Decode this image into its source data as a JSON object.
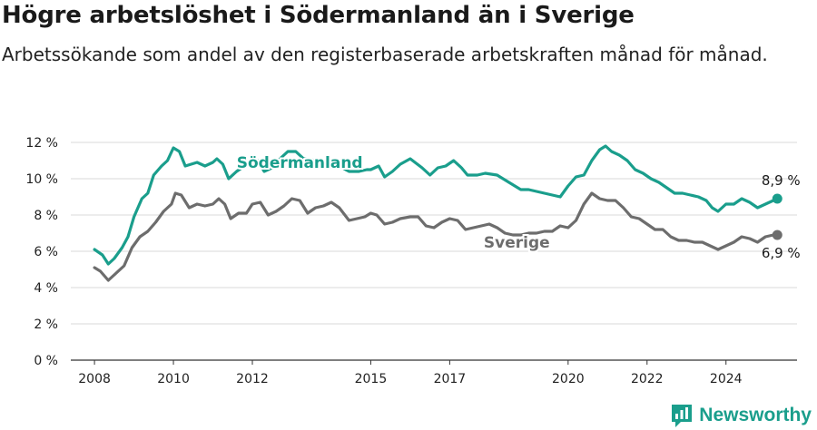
{
  "header": {
    "title": "Högre arbetslöshet i Södermanland än i Sverige",
    "subtitle": "Arbetssökande som andel av den registerbaserade arbetskraften månad för månad."
  },
  "brand": {
    "name": "Newsworthy",
    "icon": "newsworthy-logo-icon",
    "color": "#1a9e8c"
  },
  "chart_data": {
    "type": "line",
    "title": "Högre arbetslöshet i Södermanland än i Sverige",
    "subtitle": "Arbetssökande som andel av den registerbaserade arbetskraften månad för månad.",
    "xlabel": "",
    "ylabel": "",
    "xlim": [
      2007.4,
      2025.8
    ],
    "ylim": [
      0,
      12
    ],
    "yticks": [
      0,
      2,
      4,
      6,
      8,
      10,
      12
    ],
    "ytick_labels": [
      "0 %",
      "2 %",
      "4 %",
      "6 %",
      "8 %",
      "10 %",
      "12 %"
    ],
    "xticks": [
      2008,
      2010,
      2012,
      2015,
      2017,
      2020,
      2022,
      2024
    ],
    "xtick_labels": [
      "2008",
      "2010",
      "2012",
      "2015",
      "2017",
      "2020",
      "2022",
      "2024"
    ],
    "grid": "horizontal",
    "legend": "inline labels",
    "series": [
      {
        "name": "Södermanland",
        "color": "#1a9e8c",
        "end_label": "8,9 %",
        "points": [
          [
            2008.0,
            6.1
          ],
          [
            2008.2,
            5.8
          ],
          [
            2008.35,
            5.3
          ],
          [
            2008.5,
            5.6
          ],
          [
            2008.7,
            6.2
          ],
          [
            2008.85,
            6.8
          ],
          [
            2009.0,
            7.9
          ],
          [
            2009.2,
            8.9
          ],
          [
            2009.35,
            9.2
          ],
          [
            2009.5,
            10.2
          ],
          [
            2009.7,
            10.7
          ],
          [
            2009.85,
            11.0
          ],
          [
            2010.0,
            11.7
          ],
          [
            2010.15,
            11.5
          ],
          [
            2010.3,
            10.7
          ],
          [
            2010.45,
            10.8
          ],
          [
            2010.6,
            10.9
          ],
          [
            2010.8,
            10.7
          ],
          [
            2011.0,
            10.9
          ],
          [
            2011.1,
            11.1
          ],
          [
            2011.25,
            10.8
          ],
          [
            2011.4,
            10.0
          ],
          [
            2011.6,
            10.4
          ],
          [
            2011.8,
            10.7
          ],
          [
            2012.0,
            10.9
          ],
          [
            2012.15,
            11.0
          ],
          [
            2012.3,
            10.4
          ],
          [
            2012.5,
            10.6
          ],
          [
            2012.7,
            11.1
          ],
          [
            2012.9,
            11.5
          ],
          [
            2013.1,
            11.5
          ],
          [
            2013.3,
            11.1
          ],
          [
            2013.6,
            11.0
          ],
          [
            2013.9,
            10.6
          ],
          [
            2014.2,
            10.7
          ],
          [
            2014.45,
            10.4
          ],
          [
            2014.7,
            10.4
          ],
          [
            2014.9,
            10.5
          ],
          [
            2015.0,
            10.5
          ],
          [
            2015.2,
            10.7
          ],
          [
            2015.35,
            10.1
          ],
          [
            2015.55,
            10.4
          ],
          [
            2015.75,
            10.8
          ],
          [
            2016.0,
            11.1
          ],
          [
            2016.3,
            10.6
          ],
          [
            2016.5,
            10.2
          ],
          [
            2016.7,
            10.6
          ],
          [
            2016.9,
            10.7
          ],
          [
            2017.1,
            11.0
          ],
          [
            2017.3,
            10.6
          ],
          [
            2017.45,
            10.2
          ],
          [
            2017.7,
            10.2
          ],
          [
            2017.9,
            10.3
          ],
          [
            2018.2,
            10.2
          ],
          [
            2018.5,
            9.8
          ],
          [
            2018.8,
            9.4
          ],
          [
            2019.0,
            9.4
          ],
          [
            2019.2,
            9.3
          ],
          [
            2019.4,
            9.2
          ],
          [
            2019.6,
            9.1
          ],
          [
            2019.8,
            9.0
          ],
          [
            2020.0,
            9.6
          ],
          [
            2020.2,
            10.1
          ],
          [
            2020.4,
            10.2
          ],
          [
            2020.6,
            11.0
          ],
          [
            2020.8,
            11.6
          ],
          [
            2020.95,
            11.8
          ],
          [
            2021.1,
            11.5
          ],
          [
            2021.3,
            11.3
          ],
          [
            2021.5,
            11.0
          ],
          [
            2021.7,
            10.5
          ],
          [
            2021.9,
            10.3
          ],
          [
            2022.1,
            10.0
          ],
          [
            2022.3,
            9.8
          ],
          [
            2022.5,
            9.5
          ],
          [
            2022.7,
            9.2
          ],
          [
            2022.9,
            9.2
          ],
          [
            2023.1,
            9.1
          ],
          [
            2023.3,
            9.0
          ],
          [
            2023.5,
            8.8
          ],
          [
            2023.65,
            8.4
          ],
          [
            2023.8,
            8.2
          ],
          [
            2024.0,
            8.6
          ],
          [
            2024.2,
            8.6
          ],
          [
            2024.4,
            8.9
          ],
          [
            2024.6,
            8.7
          ],
          [
            2024.8,
            8.4
          ],
          [
            2025.0,
            8.6
          ],
          [
            2025.2,
            8.8
          ],
          [
            2025.3,
            8.9
          ]
        ]
      },
      {
        "name": "Sverige",
        "color": "#6d6d6d",
        "end_label": "6,9 %",
        "points": [
          [
            2008.0,
            5.1
          ],
          [
            2008.15,
            4.9
          ],
          [
            2008.35,
            4.4
          ],
          [
            2008.55,
            4.8
          ],
          [
            2008.75,
            5.2
          ],
          [
            2008.95,
            6.2
          ],
          [
            2009.15,
            6.8
          ],
          [
            2009.35,
            7.1
          ],
          [
            2009.55,
            7.6
          ],
          [
            2009.75,
            8.2
          ],
          [
            2009.95,
            8.6
          ],
          [
            2010.05,
            9.2
          ],
          [
            2010.2,
            9.1
          ],
          [
            2010.4,
            8.4
          ],
          [
            2010.6,
            8.6
          ],
          [
            2010.8,
            8.5
          ],
          [
            2011.0,
            8.6
          ],
          [
            2011.15,
            8.9
          ],
          [
            2011.3,
            8.6
          ],
          [
            2011.45,
            7.8
          ],
          [
            2011.65,
            8.1
          ],
          [
            2011.85,
            8.1
          ],
          [
            2012.0,
            8.6
          ],
          [
            2012.2,
            8.7
          ],
          [
            2012.4,
            8.0
          ],
          [
            2012.6,
            8.2
          ],
          [
            2012.8,
            8.5
          ],
          [
            2013.0,
            8.9
          ],
          [
            2013.2,
            8.8
          ],
          [
            2013.4,
            8.1
          ],
          [
            2013.6,
            8.4
          ],
          [
            2013.8,
            8.5
          ],
          [
            2014.0,
            8.7
          ],
          [
            2014.2,
            8.4
          ],
          [
            2014.45,
            7.7
          ],
          [
            2014.65,
            7.8
          ],
          [
            2014.85,
            7.9
          ],
          [
            2015.0,
            8.1
          ],
          [
            2015.15,
            8.0
          ],
          [
            2015.35,
            7.5
          ],
          [
            2015.55,
            7.6
          ],
          [
            2015.75,
            7.8
          ],
          [
            2016.0,
            7.9
          ],
          [
            2016.2,
            7.9
          ],
          [
            2016.4,
            7.4
          ],
          [
            2016.6,
            7.3
          ],
          [
            2016.8,
            7.6
          ],
          [
            2017.0,
            7.8
          ],
          [
            2017.2,
            7.7
          ],
          [
            2017.4,
            7.2
          ],
          [
            2017.6,
            7.3
          ],
          [
            2017.8,
            7.4
          ],
          [
            2018.0,
            7.5
          ],
          [
            2018.2,
            7.3
          ],
          [
            2018.4,
            7.0
          ],
          [
            2018.6,
            6.9
          ],
          [
            2018.8,
            6.9
          ],
          [
            2019.0,
            7.0
          ],
          [
            2019.2,
            7.0
          ],
          [
            2019.4,
            7.1
          ],
          [
            2019.6,
            7.1
          ],
          [
            2019.8,
            7.4
          ],
          [
            2020.0,
            7.3
          ],
          [
            2020.2,
            7.7
          ],
          [
            2020.4,
            8.6
          ],
          [
            2020.6,
            9.2
          ],
          [
            2020.8,
            8.9
          ],
          [
            2021.0,
            8.8
          ],
          [
            2021.2,
            8.8
          ],
          [
            2021.4,
            8.4
          ],
          [
            2021.6,
            7.9
          ],
          [
            2021.8,
            7.8
          ],
          [
            2022.0,
            7.5
          ],
          [
            2022.2,
            7.2
          ],
          [
            2022.4,
            7.2
          ],
          [
            2022.6,
            6.8
          ],
          [
            2022.8,
            6.6
          ],
          [
            2023.0,
            6.6
          ],
          [
            2023.2,
            6.5
          ],
          [
            2023.4,
            6.5
          ],
          [
            2023.6,
            6.3
          ],
          [
            2023.8,
            6.1
          ],
          [
            2024.0,
            6.3
          ],
          [
            2024.2,
            6.5
          ],
          [
            2024.4,
            6.8
          ],
          [
            2024.6,
            6.7
          ],
          [
            2024.8,
            6.5
          ],
          [
            2025.0,
            6.8
          ],
          [
            2025.2,
            6.9
          ],
          [
            2025.3,
            6.9
          ]
        ]
      }
    ]
  }
}
